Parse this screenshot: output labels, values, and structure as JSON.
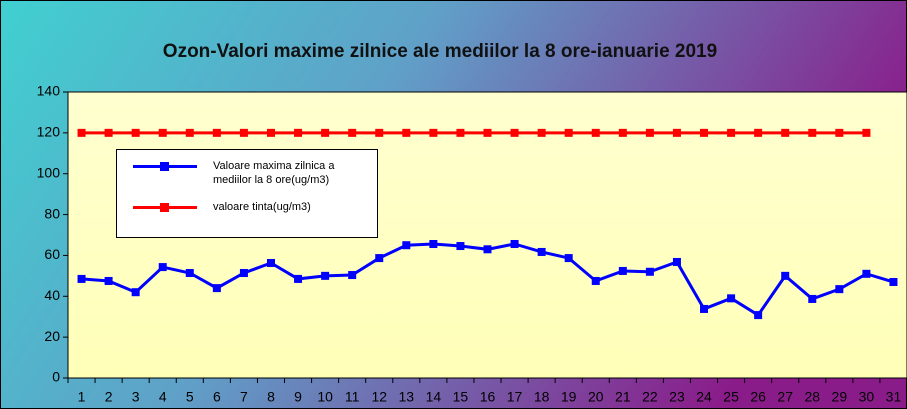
{
  "chart_data": {
    "type": "line",
    "title": "Ozon-Valori maxime zilnice ale mediilor la 8 ore-ianuarie 2019",
    "categories": [
      "1",
      "2",
      "3",
      "4",
      "5",
      "6",
      "7",
      "8",
      "9",
      "10",
      "11",
      "12",
      "13",
      "14",
      "15",
      "16",
      "17",
      "18",
      "19",
      "20",
      "21",
      "22",
      "23",
      "24",
      "25",
      "26",
      "27",
      "28",
      "29",
      "30",
      "31"
    ],
    "series": [
      {
        "name": "Valoare maxima zilnica a mediilor  la 8 ore(ug/m3)",
        "color": "#0000ff",
        "values": [
          48.5,
          47.5,
          42,
          54.3,
          51.4,
          44,
          51.4,
          56.3,
          48.5,
          50,
          50.4,
          58.7,
          65,
          65.6,
          64.6,
          63,
          65.6,
          61.7,
          58.7,
          47.5,
          52.4,
          52,
          56.8,
          33.8,
          39,
          30.8,
          50,
          38.7,
          43.5,
          51,
          47
        ]
      },
      {
        "name": "valoare tinta(ug/m3)",
        "color": "#ff0000",
        "values": [
          120,
          120,
          120,
          120,
          120,
          120,
          120,
          120,
          120,
          120,
          120,
          120,
          120,
          120,
          120,
          120,
          120,
          120,
          120,
          120,
          120,
          120,
          120,
          120,
          120,
          120,
          120,
          120,
          120,
          120,
          null
        ]
      }
    ],
    "ylim": [
      0,
      140
    ],
    "yticks": [
      0,
      20,
      40,
      60,
      80,
      100,
      120,
      140
    ],
    "grid": false
  }
}
